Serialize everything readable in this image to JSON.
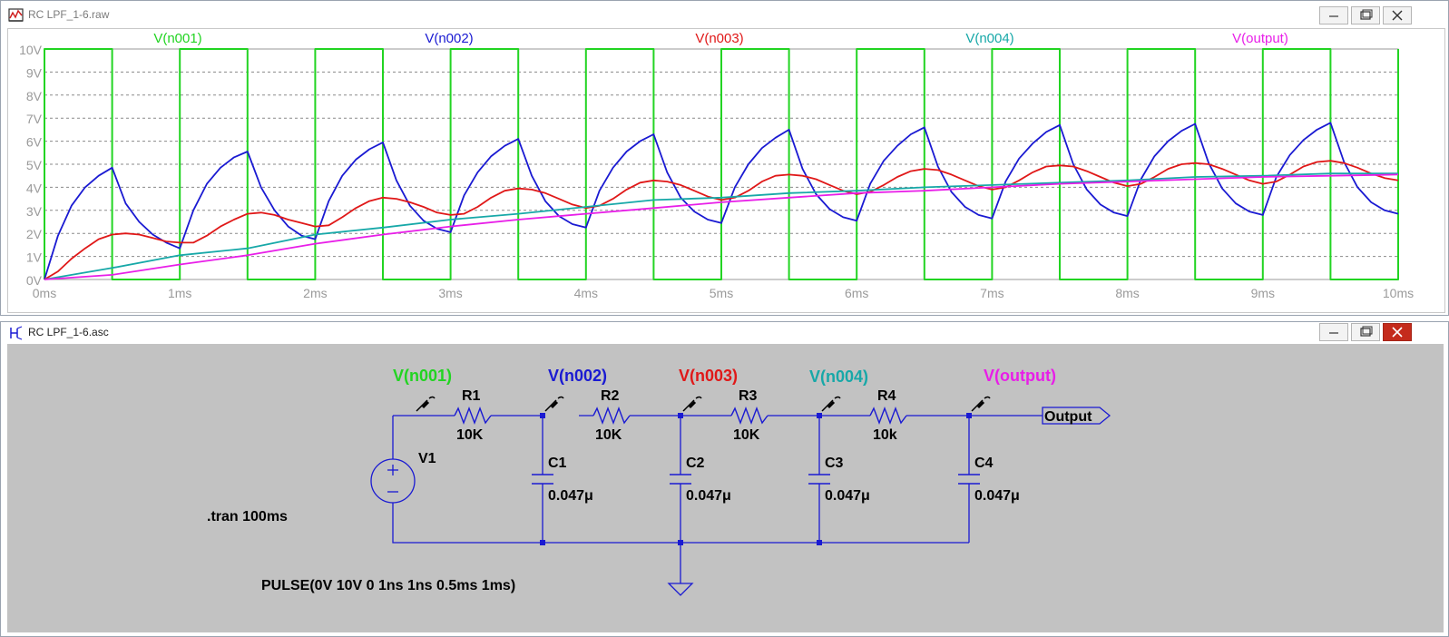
{
  "plot_window": {
    "title": "RC LPF_1-6.raw",
    "controls": [
      "minimize",
      "restore",
      "close"
    ]
  },
  "schematic_window": {
    "title": "RC LPF_1-6.asc",
    "controls": [
      "minimize",
      "restore",
      "close"
    ]
  },
  "chart_data": {
    "type": "line",
    "title": "",
    "xlabel": "",
    "ylabel": "",
    "xlim": [
      0,
      10
    ],
    "ylim": [
      0,
      10
    ],
    "x_unit": "ms",
    "y_unit": "V",
    "x_ticks": [
      "0ms",
      "1ms",
      "2ms",
      "3ms",
      "4ms",
      "5ms",
      "6ms",
      "7ms",
      "8ms",
      "9ms",
      "10ms"
    ],
    "y_ticks": [
      "0V",
      "1V",
      "2V",
      "3V",
      "4V",
      "5V",
      "6V",
      "7V",
      "8V",
      "9V",
      "10V"
    ],
    "grid": true,
    "legend_placement": "top",
    "series": [
      {
        "name": "V(n001)",
        "color": "#22d422",
        "style": "square-pulse-0-10V",
        "x": [
          0,
          0,
          0.5,
          0.5,
          1.0,
          1.0,
          1.5,
          1.5,
          2.0,
          2.0,
          2.5,
          2.5,
          3.0,
          3.0,
          3.5,
          3.5,
          4.0,
          4.0,
          4.5,
          4.5,
          5.0,
          5.0,
          5.5,
          5.5,
          6.0,
          6.0,
          6.5,
          6.5,
          7.0,
          7.0,
          7.5,
          7.5,
          8.0,
          8.0,
          8.5,
          8.5,
          9.0,
          9.0,
          9.5,
          9.5,
          10.0,
          10.0
        ],
        "y": [
          0,
          10,
          10,
          0,
          0,
          10,
          10,
          0,
          0,
          10,
          10,
          0,
          0,
          10,
          10,
          0,
          0,
          10,
          10,
          0,
          0,
          10,
          10,
          0,
          0,
          10,
          10,
          0,
          0,
          10,
          10,
          0,
          0,
          10,
          10,
          0,
          0,
          10,
          10,
          0,
          0,
          10
        ]
      },
      {
        "name": "V(n002)",
        "color": "#1a1ad2",
        "x": [
          0,
          0.1,
          0.2,
          0.3,
          0.4,
          0.5,
          0.6,
          0.7,
          0.8,
          0.9,
          1.0,
          1.1,
          1.2,
          1.3,
          1.4,
          1.5,
          1.6,
          1.7,
          1.8,
          1.9,
          2.0,
          2.1,
          2.2,
          2.3,
          2.4,
          2.5,
          2.6,
          2.7,
          2.8,
          2.9,
          3.0,
          3.1,
          3.2,
          3.3,
          3.4,
          3.5,
          3.6,
          3.7,
          3.8,
          3.9,
          4.0,
          4.1,
          4.2,
          4.3,
          4.4,
          4.5,
          4.6,
          4.7,
          4.8,
          4.9,
          5.0,
          5.1,
          5.2,
          5.3,
          5.4,
          5.5,
          5.6,
          5.7,
          5.8,
          5.9,
          6.0,
          6.1,
          6.2,
          6.3,
          6.4,
          6.5,
          6.6,
          6.7,
          6.8,
          6.9,
          7.0,
          7.1,
          7.2,
          7.3,
          7.4,
          7.5,
          7.6,
          7.7,
          7.8,
          7.9,
          8.0,
          8.1,
          8.2,
          8.3,
          8.4,
          8.5,
          8.6,
          8.7,
          8.8,
          8.9,
          9.0,
          9.1,
          9.2,
          9.3,
          9.4,
          9.5,
          9.6,
          9.7,
          9.8,
          9.9,
          10.0
        ],
        "y": [
          0,
          1.9,
          3.2,
          4.0,
          4.5,
          4.85,
          3.3,
          2.5,
          1.95,
          1.6,
          1.35,
          3.0,
          4.15,
          4.85,
          5.3,
          5.55,
          4.0,
          3.0,
          2.3,
          1.9,
          1.75,
          3.4,
          4.5,
          5.2,
          5.65,
          5.95,
          4.3,
          3.2,
          2.55,
          2.2,
          2.05,
          3.65,
          4.65,
          5.35,
          5.8,
          6.1,
          4.5,
          3.4,
          2.75,
          2.4,
          2.25,
          3.85,
          4.85,
          5.55,
          6.0,
          6.3,
          4.65,
          3.55,
          2.95,
          2.6,
          2.45,
          4.0,
          5.0,
          5.7,
          6.15,
          6.5,
          4.8,
          3.7,
          3.05,
          2.7,
          2.55,
          4.15,
          5.15,
          5.8,
          6.3,
          6.6,
          4.9,
          3.8,
          3.15,
          2.8,
          2.65,
          4.25,
          5.25,
          5.9,
          6.4,
          6.7,
          5.0,
          3.9,
          3.25,
          2.9,
          2.75,
          4.35,
          5.35,
          6.0,
          6.45,
          6.75,
          5.05,
          3.95,
          3.3,
          2.95,
          2.8,
          4.45,
          5.4,
          6.05,
          6.5,
          6.8,
          5.1,
          4.0,
          3.35,
          3.0,
          2.85
        ]
      },
      {
        "name": "V(n003)",
        "color": "#e01818",
        "x": [
          0,
          0.1,
          0.2,
          0.3,
          0.4,
          0.5,
          0.6,
          0.7,
          0.8,
          0.9,
          1.0,
          1.1,
          1.2,
          1.3,
          1.4,
          1.5,
          1.6,
          1.7,
          1.8,
          1.9,
          2.0,
          2.1,
          2.2,
          2.3,
          2.4,
          2.5,
          2.6,
          2.7,
          2.8,
          2.9,
          3.0,
          3.1,
          3.2,
          3.3,
          3.4,
          3.5,
          3.6,
          3.7,
          3.8,
          3.9,
          4.0,
          4.1,
          4.2,
          4.3,
          4.4,
          4.5,
          4.6,
          4.7,
          4.8,
          4.9,
          5.0,
          5.1,
          5.2,
          5.3,
          5.4,
          5.5,
          5.6,
          5.7,
          5.8,
          5.9,
          6.0,
          6.1,
          6.2,
          6.3,
          6.4,
          6.5,
          6.6,
          6.7,
          6.8,
          6.9,
          7.0,
          7.1,
          7.2,
          7.3,
          7.4,
          7.5,
          7.6,
          7.7,
          7.8,
          7.9,
          8.0,
          8.1,
          8.2,
          8.3,
          8.4,
          8.5,
          8.6,
          8.7,
          8.8,
          8.9,
          9.0,
          9.1,
          9.2,
          9.3,
          9.4,
          9.5,
          9.6,
          9.7,
          9.8,
          9.9,
          10.0
        ],
        "y": [
          0,
          0.35,
          0.9,
          1.35,
          1.75,
          1.95,
          2.0,
          1.95,
          1.8,
          1.65,
          1.6,
          1.6,
          1.9,
          2.3,
          2.6,
          2.85,
          2.9,
          2.8,
          2.6,
          2.45,
          2.3,
          2.35,
          2.7,
          3.1,
          3.4,
          3.55,
          3.5,
          3.35,
          3.15,
          2.9,
          2.8,
          2.85,
          3.15,
          3.55,
          3.85,
          3.95,
          3.9,
          3.75,
          3.5,
          3.25,
          3.1,
          3.2,
          3.5,
          3.9,
          4.2,
          4.3,
          4.25,
          4.1,
          3.85,
          3.6,
          3.45,
          3.55,
          3.85,
          4.25,
          4.5,
          4.55,
          4.5,
          4.35,
          4.1,
          3.85,
          3.7,
          3.8,
          4.1,
          4.45,
          4.7,
          4.8,
          4.75,
          4.55,
          4.3,
          4.05,
          3.9,
          4.0,
          4.3,
          4.65,
          4.9,
          4.95,
          4.9,
          4.7,
          4.45,
          4.2,
          4.05,
          4.15,
          4.45,
          4.8,
          5.0,
          5.05,
          5.0,
          4.8,
          4.55,
          4.3,
          4.15,
          4.25,
          4.55,
          4.9,
          5.1,
          5.15,
          5.05,
          4.85,
          4.6,
          4.4,
          4.3
        ]
      },
      {
        "name": "V(n004)",
        "color": "#17a8a8",
        "x": [
          0,
          0.5,
          1.0,
          1.5,
          2.0,
          2.5,
          3.0,
          3.5,
          4.0,
          4.5,
          5.0,
          5.5,
          6.0,
          6.5,
          7.0,
          7.5,
          8.0,
          8.5,
          9.0,
          9.5,
          10.0
        ],
        "y": [
          0,
          0.5,
          1.05,
          1.35,
          1.95,
          2.25,
          2.6,
          2.85,
          3.15,
          3.45,
          3.55,
          3.75,
          3.85,
          4.0,
          4.1,
          4.2,
          4.3,
          4.45,
          4.5,
          4.6,
          4.6
        ]
      },
      {
        "name": "V(output)",
        "color": "#e81ee8",
        "x": [
          0,
          0.5,
          1.0,
          1.5,
          2.0,
          2.5,
          3.0,
          3.5,
          4.0,
          4.5,
          5.0,
          5.5,
          6.0,
          6.5,
          7.0,
          7.5,
          8.0,
          8.5,
          9.0,
          9.5,
          10.0
        ],
        "y": [
          0,
          0.2,
          0.65,
          1.05,
          1.55,
          1.95,
          2.3,
          2.6,
          2.85,
          3.1,
          3.35,
          3.55,
          3.75,
          3.85,
          4.0,
          4.15,
          4.25,
          4.35,
          4.45,
          4.5,
          4.55
        ]
      }
    ]
  },
  "schematic": {
    "probe_labels": [
      {
        "text": "V(n001)",
        "color": "#22d422"
      },
      {
        "text": "V(n002)",
        "color": "#1a1ad2"
      },
      {
        "text": "V(n003)",
        "color": "#e01818"
      },
      {
        "text": "V(n004)",
        "color": "#17a8a8"
      },
      {
        "text": "V(output)",
        "color": "#e81ee8"
      }
    ],
    "resistors": [
      {
        "name": "R1",
        "value": "10K"
      },
      {
        "name": "R2",
        "value": "10K"
      },
      {
        "name": "R3",
        "value": "10K"
      },
      {
        "name": "R4",
        "value": "10k"
      }
    ],
    "capacitors": [
      {
        "name": "C1",
        "value": "0.047μ"
      },
      {
        "name": "C2",
        "value": "0.047μ"
      },
      {
        "name": "C3",
        "value": "0.047μ"
      },
      {
        "name": "C4",
        "value": "0.047μ"
      }
    ],
    "source": {
      "name": "V1",
      "value": "PULSE(0V 10V 0 1ns 1ns 0.5ms 1ms)"
    },
    "directive": ".tran 100ms",
    "output_label": "Output",
    "colors": {
      "wire": "#1a1ad2",
      "component": "#1a1ad2",
      "text": "#000000",
      "background": "#c2c2c2"
    }
  }
}
